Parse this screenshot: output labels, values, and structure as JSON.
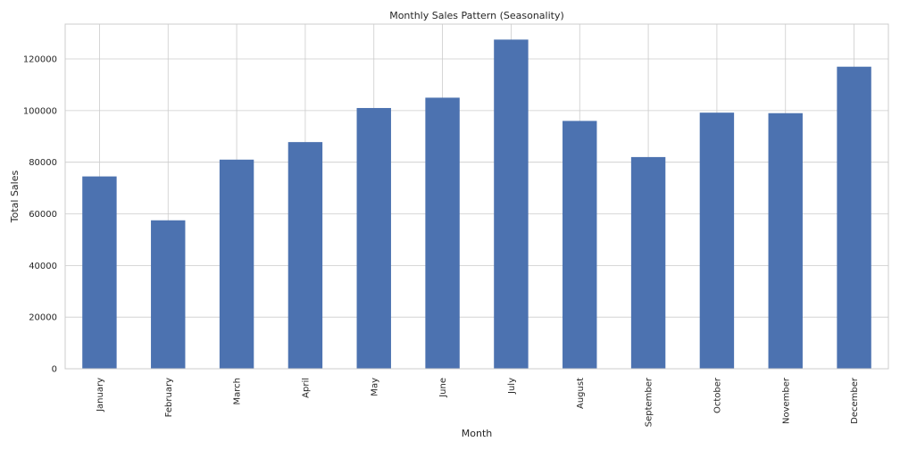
{
  "chart_data": {
    "type": "bar",
    "title": "Monthly Sales Pattern (Seasonality)",
    "xlabel": "Month",
    "ylabel": "Total Sales",
    "categories": [
      "January",
      "February",
      "March",
      "April",
      "May",
      "June",
      "July",
      "August",
      "September",
      "October",
      "November",
      "December"
    ],
    "values": [
      74500,
      57500,
      81000,
      87800,
      101000,
      105000,
      127500,
      96000,
      82000,
      99200,
      99000,
      117000
    ],
    "ylim": [
      0,
      133500
    ],
    "yticks": [
      0,
      20000,
      40000,
      60000,
      80000,
      100000,
      120000
    ],
    "grid": true,
    "bar_color": "#4c72b0"
  }
}
